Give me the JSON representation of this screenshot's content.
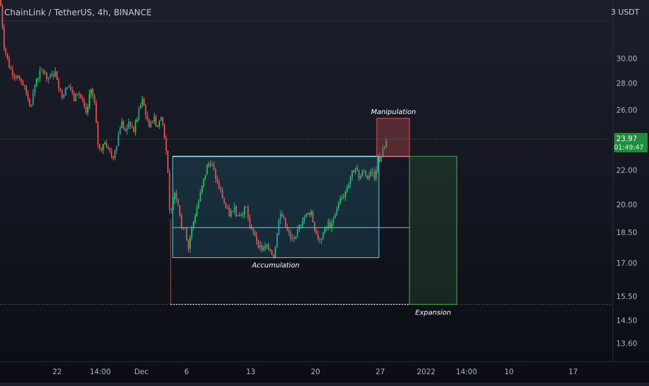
{
  "header": {
    "symbol_title": "ChainLink / TetherUS, 4h, BINANCE",
    "unit": "3 USDT"
  },
  "price_badge": {
    "price": "23.97",
    "countdown": "01:49:47"
  },
  "colors": {
    "up": "#26a69a",
    "up_bright": "#22d34a",
    "down": "#ef5350",
    "accumulation_box": "#4dd8e6",
    "manipulation_box": "#e05252",
    "expansion_box": "#4caf50",
    "current_price_line": "#2e9e4e",
    "badge_bg": "#1e8e3e"
  },
  "chart_data": {
    "type": "candlestick",
    "title": "ChainLink / TetherUS, 4h, BINANCE",
    "x_tick_labels": [
      "22",
      "14:00",
      "Dec",
      "6",
      "13",
      "20",
      "27",
      "2022",
      "14:00",
      "10",
      "17"
    ],
    "y_tick_labels": [
      "30.00",
      "28.00",
      "26.00",
      "22.00",
      "20.00",
      "18.50",
      "17.00",
      "15.50",
      "14.50",
      "13.60"
    ],
    "y_scale": "log",
    "ylim": [
      13.1,
      36.0
    ],
    "last_price": 23.97,
    "series_path": [
      [
        0,
        35.5
      ],
      [
        6,
        31.0
      ],
      [
        14,
        29.2
      ],
      [
        22,
        28.6
      ],
      [
        30,
        28.3
      ],
      [
        38,
        27.2
      ],
      [
        44,
        26.3
      ],
      [
        52,
        28.3
      ],
      [
        60,
        29.0
      ],
      [
        66,
        28.6
      ],
      [
        72,
        28.4
      ],
      [
        80,
        28.9
      ],
      [
        88,
        27.0
      ],
      [
        94,
        27.5
      ],
      [
        100,
        27.8
      ],
      [
        106,
        26.7
      ],
      [
        112,
        27.4
      ],
      [
        118,
        26.6
      ],
      [
        124,
        25.5
      ],
      [
        130,
        27.8
      ],
      [
        136,
        26.3
      ],
      [
        140,
        23.8
      ],
      [
        144,
        23.2
      ],
      [
        150,
        24.0
      ],
      [
        156,
        23.1
      ],
      [
        162,
        22.8
      ],
      [
        168,
        23.8
      ],
      [
        174,
        25.2
      ],
      [
        180,
        24.4
      ],
      [
        186,
        25.1
      ],
      [
        192,
        24.5
      ],
      [
        198,
        25.6
      ],
      [
        204,
        26.7
      ],
      [
        208,
        26.1
      ],
      [
        214,
        24.6
      ],
      [
        220,
        25.5
      ],
      [
        226,
        24.8
      ],
      [
        232,
        25.6
      ],
      [
        236,
        24.3
      ],
      [
        240,
        22.7
      ],
      [
        244,
        19.2
      ],
      [
        246,
        19.6
      ],
      [
        250,
        20.8
      ],
      [
        256,
        20.1
      ],
      [
        262,
        18.4
      ],
      [
        266,
        18.9
      ],
      [
        270,
        17.6
      ],
      [
        274,
        18.5
      ],
      [
        280,
        19.4
      ],
      [
        286,
        20.3
      ],
      [
        292,
        21.3
      ],
      [
        298,
        22.3
      ],
      [
        302,
        22.5
      ],
      [
        306,
        22.1
      ],
      [
        312,
        21.2
      ],
      [
        318,
        20.6
      ],
      [
        324,
        19.8
      ],
      [
        330,
        19.4
      ],
      [
        336,
        19.9
      ],
      [
        342,
        19.2
      ],
      [
        348,
        19.6
      ],
      [
        354,
        19.8
      ],
      [
        360,
        18.6
      ],
      [
        366,
        18.4
      ],
      [
        372,
        17.8
      ],
      [
        378,
        17.6
      ],
      [
        384,
        17.9
      ],
      [
        390,
        17.5
      ],
      [
        394,
        17.3
      ],
      [
        398,
        18.6
      ],
      [
        402,
        19.5
      ],
      [
        406,
        19.3
      ],
      [
        412,
        18.6
      ],
      [
        418,
        18.2
      ],
      [
        424,
        18.0
      ],
      [
        428,
        18.6
      ],
      [
        434,
        19.2
      ],
      [
        440,
        19.4
      ],
      [
        446,
        19.6
      ],
      [
        452,
        18.7
      ],
      [
        458,
        18.1
      ],
      [
        464,
        18.4
      ],
      [
        470,
        19.0
      ],
      [
        476,
        18.8
      ],
      [
        480,
        19.3
      ],
      [
        486,
        20.1
      ],
      [
        492,
        20.4
      ],
      [
        498,
        20.9
      ],
      [
        504,
        21.7
      ],
      [
        510,
        22.1
      ],
      [
        516,
        21.5
      ],
      [
        522,
        21.9
      ],
      [
        528,
        21.6
      ],
      [
        534,
        22.0
      ],
      [
        538,
        21.6
      ],
      [
        542,
        22.7
      ],
      [
        546,
        22.7
      ],
      [
        552,
        23.4
      ],
      [
        556,
        23.97
      ]
    ],
    "annotations": [
      {
        "label": "Manipulation",
        "type": "box",
        "x0": 541,
        "x1": 588,
        "y0": 22.85,
        "y1": 25.4
      },
      {
        "label": "Accumulation",
        "type": "box",
        "x0": 248,
        "x1": 544,
        "y0": 17.25,
        "y1": 22.85,
        "midline": 18.75
      },
      {
        "label": "Expansion",
        "type": "box",
        "x0": 588,
        "x1": 656,
        "y0": 15.15,
        "y1": 22.85
      }
    ],
    "grid": false,
    "legend": "none"
  }
}
